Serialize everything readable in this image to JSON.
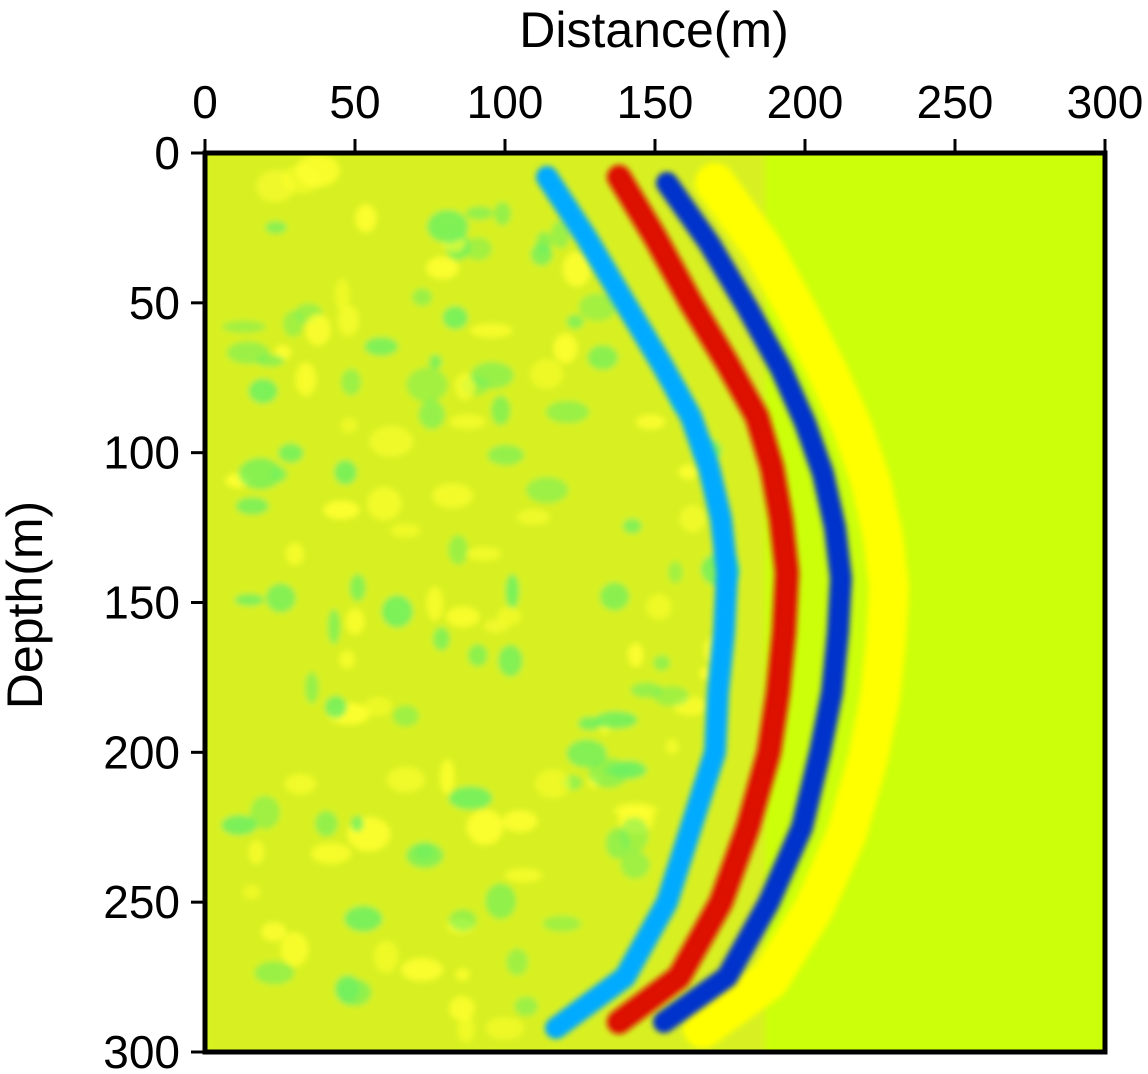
{
  "chart_data": {
    "type": "heatmap",
    "title": "",
    "xlabel": "Distance(m)",
    "ylabel": "Depth(m)",
    "xlim": [
      0,
      300
    ],
    "ylim": [
      0,
      300
    ],
    "y_inverted": true,
    "x_axis_position": "top",
    "x_ticks": [
      0,
      50,
      100,
      150,
      200,
      250,
      300
    ],
    "y_ticks": [
      0,
      50,
      100,
      150,
      200,
      250,
      300
    ],
    "grid": false,
    "colormap": [
      "#0033cc",
      "#00aaff",
      "#22ee66",
      "#ffff00",
      "#ff8800",
      "#dd1100"
    ],
    "background_color": "#ccff0a",
    "wavefronts": [
      {
        "name": "",
        "color": "#dd1100",
        "points": [
          [
            138,
            8
          ],
          [
            150,
            28
          ],
          [
            162,
            50
          ],
          [
            174,
            70
          ],
          [
            184,
            88
          ],
          [
            189,
            105
          ],
          [
            192,
            122
          ],
          [
            194,
            140
          ],
          [
            193,
            160
          ],
          [
            191,
            180
          ],
          [
            188,
            200
          ],
          [
            181,
            225
          ],
          [
            172,
            250
          ],
          [
            158,
            275
          ],
          [
            138,
            290
          ]
        ]
      },
      {
        "name": "",
        "color": "#0033cc",
        "points": [
          [
            154,
            10
          ],
          [
            168,
            30
          ],
          [
            181,
            52
          ],
          [
            192,
            72
          ],
          [
            200,
            90
          ],
          [
            206,
            107
          ],
          [
            210,
            125
          ],
          [
            212,
            142
          ],
          [
            211,
            160
          ],
          [
            209,
            180
          ],
          [
            205,
            200
          ],
          [
            199,
            225
          ],
          [
            188,
            250
          ],
          [
            174,
            275
          ],
          [
            153,
            290
          ]
        ]
      },
      {
        "name": "",
        "color": "#00aaff",
        "points": [
          [
            114,
            8
          ],
          [
            127,
            28
          ],
          [
            140,
            50
          ],
          [
            152,
            70
          ],
          [
            162,
            88
          ],
          [
            168,
            105
          ],
          [
            172,
            122
          ],
          [
            174,
            140
          ],
          [
            173,
            160
          ],
          [
            171,
            180
          ],
          [
            170,
            200
          ],
          [
            162,
            225
          ],
          [
            154,
            250
          ],
          [
            140,
            275
          ],
          [
            117,
            292
          ]
        ]
      },
      {
        "name": "",
        "color": "#ffff00",
        "points": [
          [
            170,
            10
          ],
          [
            186,
            32
          ],
          [
            198,
            54
          ],
          [
            208,
            74
          ],
          [
            216,
            92
          ],
          [
            222,
            110
          ],
          [
            226,
            128
          ],
          [
            228,
            145
          ],
          [
            227,
            163
          ],
          [
            225,
            182
          ],
          [
            221,
            202
          ],
          [
            214,
            227
          ],
          [
            203,
            252
          ],
          [
            188,
            276
          ],
          [
            166,
            292
          ]
        ]
      }
    ]
  }
}
